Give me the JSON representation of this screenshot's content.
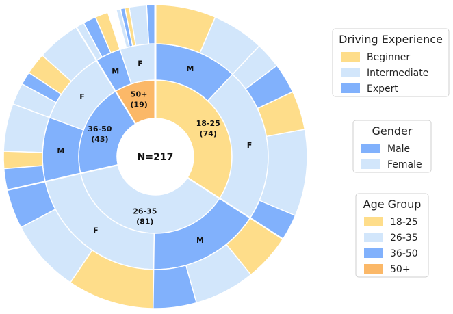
{
  "chart_data": {
    "type": "pie",
    "subtype": "sunburst",
    "total_label": "N=217",
    "colors": {
      "age": {
        "18-25": "#fedd8a",
        "26-35": "#d2e6fb",
        "36-50": "#81b1fc",
        "50+": "#fbb868"
      },
      "gender": {
        "M": "#81b1fc",
        "F": "#d2e6fb"
      },
      "experience": {
        "Beginner": "#fedd8a",
        "Intermediate": "#d2e6fb",
        "Expert": "#81b1fc"
      },
      "edge": "#ffffff"
    },
    "age_groups": [
      {
        "group": "50+",
        "count": 19,
        "label": "50+",
        "count_label": "(19)",
        "genders": [
          {
            "gender": "F",
            "label": "F",
            "count": 11,
            "experience": [
              {
                "level": "Expert",
                "count": 2
              },
              {
                "level": "Intermediate",
                "count": 4
              },
              {
                "level": "Beginner",
                "count": 1
              },
              {
                "level": "Expert",
                "count": 1
              },
              {
                "level": "Intermediate",
                "count": 1
              }
            ]
          },
          {
            "gender": "M",
            "label": "M",
            "count": 8,
            "experience": [
              {
                "level": "Beginner",
                "count": 3
              },
              {
                "level": "Expert",
                "count": 3
              },
              {
                "level": "Intermediate",
                "count": 2
              }
            ]
          }
        ]
      },
      {
        "group": "36-50",
        "count": 43,
        "label": "36-50",
        "count_label": "(43)",
        "genders": [
          {
            "gender": "F",
            "label": "F",
            "count": 23,
            "experience": [
              {
                "level": "Intermediate",
                "count": 10
              },
              {
                "level": "Beginner",
                "count": 5
              },
              {
                "level": "Expert",
                "count": 3
              },
              {
                "level": "Intermediate",
                "count": 5
              }
            ]
          },
          {
            "gender": "M",
            "label": "M",
            "count": 20,
            "experience": [
              {
                "level": "Intermediate",
                "count": 11
              },
              {
                "level": "Beginner",
                "count": 4
              },
              {
                "level": "Expert",
                "count": 5
              }
            ]
          }
        ]
      },
      {
        "group": "26-35",
        "count": 81,
        "label": "26-35",
        "count_label": "(81)",
        "genders": [
          {
            "gender": "F",
            "label": "F",
            "count": 46,
            "experience": [
              {
                "level": "Expert",
                "count": 9
              },
              {
                "level": "Intermediate",
                "count": 17
              },
              {
                "level": "Beginner",
                "count": 20
              }
            ]
          },
          {
            "gender": "M",
            "label": "M",
            "count": 35,
            "experience": [
              {
                "level": "Expert",
                "count": 10
              },
              {
                "level": "Intermediate",
                "count": 14
              },
              {
                "level": "Beginner",
                "count": 11
              }
            ]
          }
        ]
      },
      {
        "group": "18-25",
        "count": 74,
        "label": "18-25",
        "count_label": "(74)",
        "genders": [
          {
            "gender": "F",
            "label": "F",
            "count": 48,
            "experience": [
              {
                "level": "Expert",
                "count": 6
              },
              {
                "level": "Intermediate",
                "count": 20
              },
              {
                "level": "Beginner",
                "count": 9
              },
              {
                "level": "Expert",
                "count": 7
              },
              {
                "level": "Intermediate",
                "count": 6
              }
            ]
          },
          {
            "gender": "M",
            "label": "M",
            "count": 26,
            "experience": [
              {
                "level": "Intermediate",
                "count": 12
              },
              {
                "level": "Beginner",
                "count": 14
              }
            ]
          }
        ]
      }
    ],
    "legends": [
      {
        "title": "Driving Experience",
        "entries": [
          {
            "label": "Beginner",
            "color": "#fedd8a"
          },
          {
            "label": "Intermediate",
            "color": "#d2e6fb"
          },
          {
            "label": "Expert",
            "color": "#81b1fc"
          }
        ]
      },
      {
        "title": "Gender",
        "entries": [
          {
            "label": "Male",
            "color": "#81b1fc"
          },
          {
            "label": "Female",
            "color": "#d2e6fb"
          }
        ]
      },
      {
        "title": "Age Group",
        "entries": [
          {
            "label": "18-25",
            "color": "#fedd8a"
          },
          {
            "label": "26-35",
            "color": "#d2e6fb"
          },
          {
            "label": "36-50",
            "color": "#81b1fc"
          },
          {
            "label": "50+",
            "color": "#fbb868"
          }
        ]
      }
    ],
    "legend_placement": "right"
  }
}
